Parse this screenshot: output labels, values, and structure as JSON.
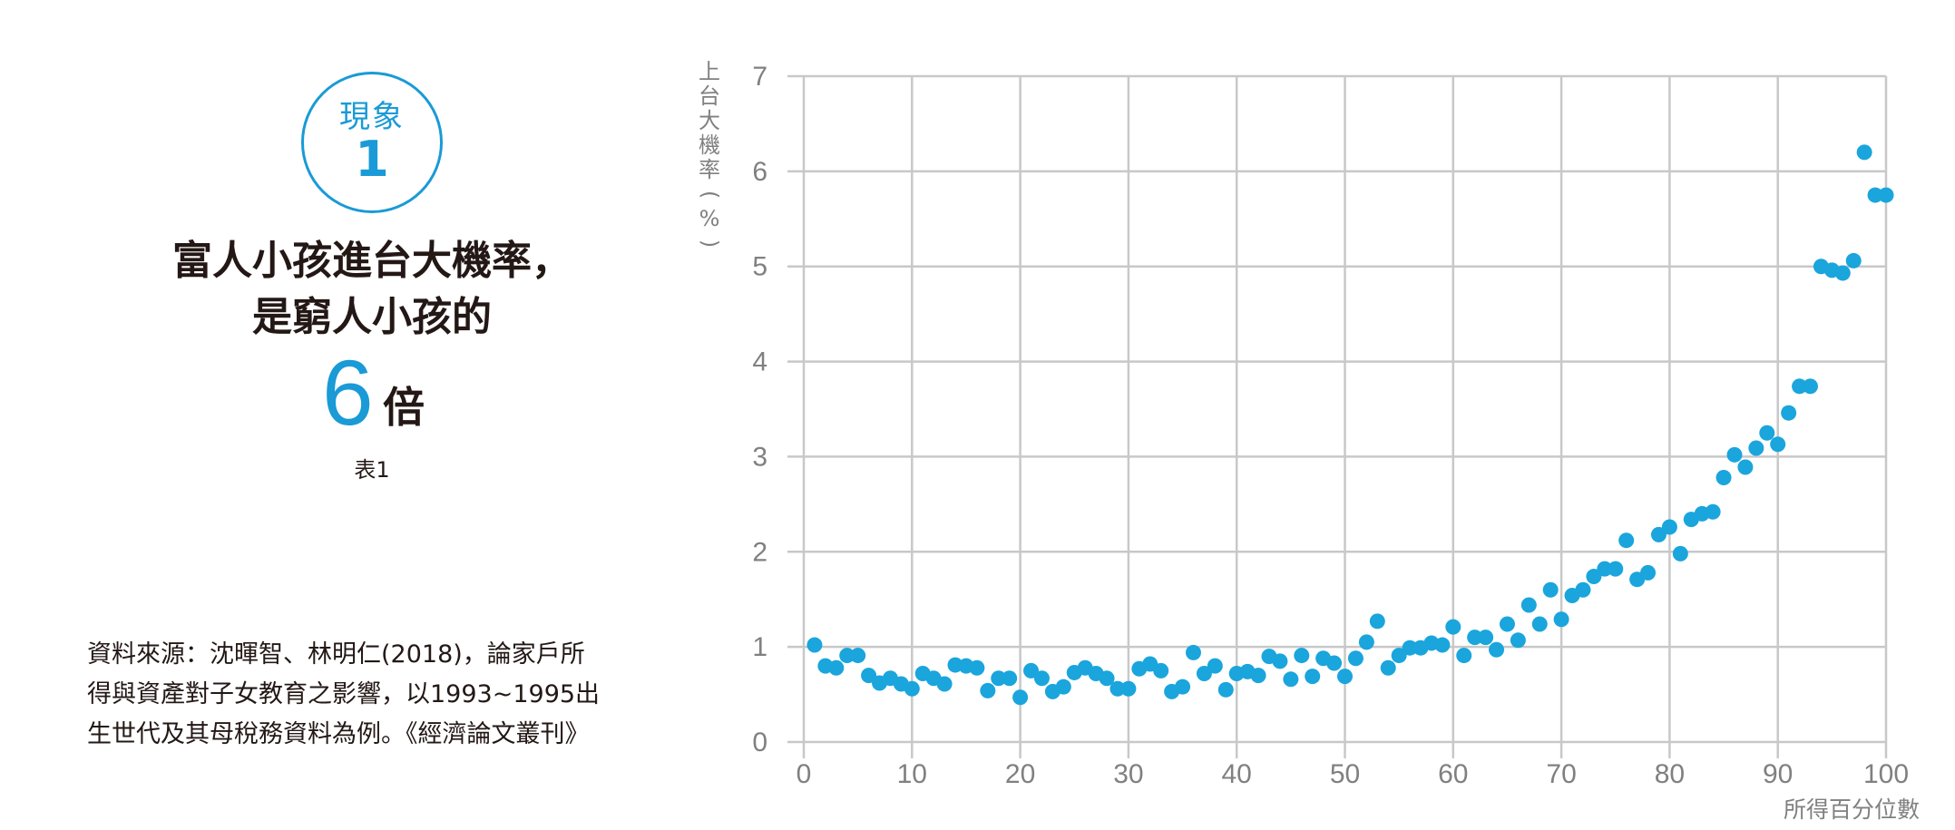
{
  "badge": {
    "label": "現象",
    "number": "1"
  },
  "headline": {
    "line1": "富人小孩進台大機率，",
    "line2": "是窮人小孩的",
    "multiplier_value": "6",
    "multiplier_unit": "倍"
  },
  "table_label": "表1",
  "source": {
    "line1": "資料來源：沈暉智、林明仁(2018)，論家戶所",
    "line2": "得與資產對子女教育之影響，以1993~1995出",
    "line3": "生世代及其母稅務資料為例。《經濟論文叢刊》"
  },
  "colors": {
    "accent": "#1a9ad6",
    "text": "#231815",
    "axis_text": "#808080",
    "grid": "#c8c8c8",
    "point": "#1aa5dd"
  },
  "chart_data": {
    "type": "scatter",
    "ylabel_chars": [
      "上",
      "台",
      "大",
      "機",
      "率",
      "(",
      "%",
      ")"
    ],
    "ylabel": "上台大機率(%)",
    "xlabel": "所得百分位數",
    "xlim": [
      0,
      100
    ],
    "ylim": [
      0,
      7
    ],
    "xticks": [
      0,
      10,
      20,
      30,
      40,
      50,
      60,
      70,
      80,
      90,
      100
    ],
    "yticks": [
      0,
      1,
      2,
      3,
      4,
      5,
      6,
      7
    ],
    "grid": true,
    "x": [
      1,
      2,
      3,
      4,
      5,
      6,
      7,
      8,
      9,
      10,
      11,
      12,
      13,
      14,
      15,
      16,
      17,
      18,
      19,
      20,
      21,
      22,
      23,
      24,
      25,
      26,
      27,
      28,
      29,
      30,
      31,
      32,
      33,
      34,
      35,
      36,
      37,
      38,
      39,
      40,
      41,
      42,
      43,
      44,
      45,
      46,
      47,
      48,
      49,
      50,
      51,
      52,
      53,
      54,
      55,
      56,
      57,
      58,
      59,
      60,
      61,
      62,
      63,
      64,
      65,
      66,
      67,
      68,
      69,
      70,
      71,
      72,
      73,
      74,
      75,
      76,
      77,
      78,
      79,
      80,
      81,
      82,
      83,
      84,
      85,
      86,
      87,
      88,
      89,
      90,
      91,
      92,
      93,
      94,
      95,
      96,
      97,
      98,
      99,
      100
    ],
    "y": [
      1.02,
      0.8,
      0.78,
      0.91,
      0.91,
      0.7,
      0.62,
      0.67,
      0.61,
      0.56,
      0.72,
      0.67,
      0.61,
      0.81,
      0.8,
      0.78,
      0.54,
      0.67,
      0.67,
      0.47,
      0.75,
      0.67,
      0.53,
      0.58,
      0.73,
      0.78,
      0.72,
      0.67,
      0.56,
      0.56,
      0.77,
      0.82,
      0.75,
      0.53,
      0.58,
      0.94,
      0.72,
      0.8,
      0.55,
      0.72,
      0.74,
      0.7,
      0.9,
      0.85,
      0.66,
      0.91,
      0.69,
      0.88,
      0.83,
      0.69,
      0.88,
      1.05,
      1.27,
      0.78,
      0.91,
      0.99,
      0.99,
      1.04,
      1.02,
      1.21,
      0.91,
      1.1,
      1.1,
      0.97,
      1.24,
      1.07,
      1.44,
      1.24,
      1.6,
      1.29,
      1.54,
      1.6,
      1.74,
      1.82,
      1.82,
      2.12,
      1.71,
      1.78,
      2.18,
      2.26,
      1.98,
      2.34,
      2.4,
      2.42,
      2.78,
      3.02,
      2.89,
      3.09,
      3.25,
      3.13,
      3.46,
      3.74,
      3.74,
      5.0,
      4.96,
      4.93,
      5.06,
      6.2,
      5.75,
      5.75
    ]
  }
}
